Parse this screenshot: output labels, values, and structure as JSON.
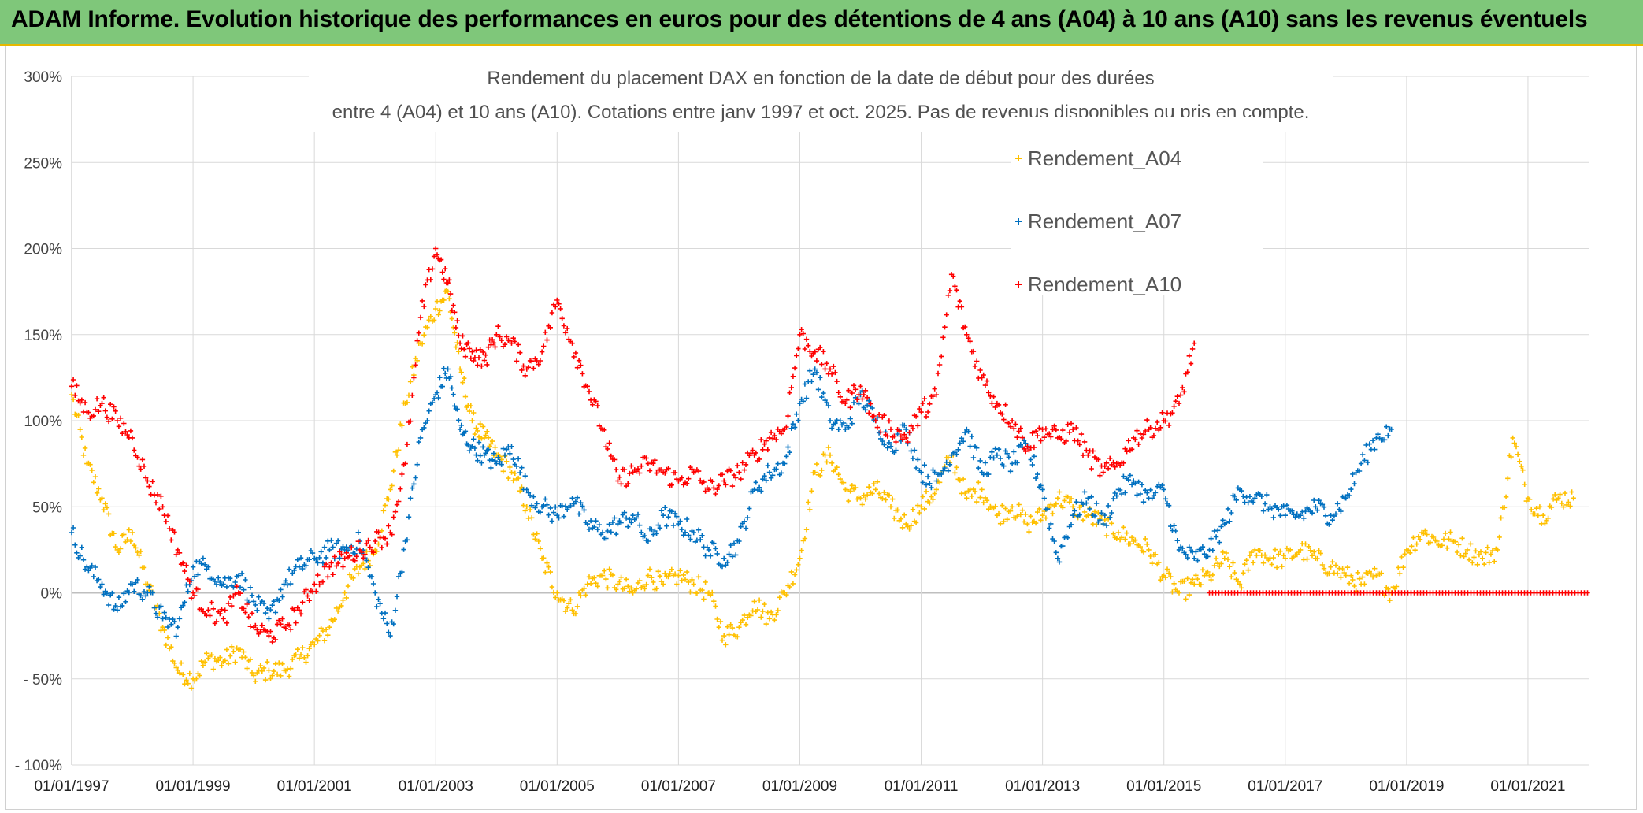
{
  "banner": {
    "title": "ADAM Informe. Evolution historique des performances en euros pour des détentions de 4 ans (A04) à 10 ans (A10) sans les revenus éventuels"
  },
  "colors": {
    "banner_bg": "#7fc77a",
    "A04": "#ffc000",
    "A07": "#0070c0",
    "A10": "#ff0000",
    "grid": "#d9d9d9"
  },
  "chart_data": {
    "type": "scatter",
    "title": "Rendement du placement DAX en fonction de la date de début pour des durées",
    "subtitle": "entre 4 (A04) et 10 ans (A10). Cotations entre janv 1997 et oct. 2025. Pas de revenus disponibles ou pris en compte.",
    "xlabel": "",
    "ylabel": "",
    "xlim": [
      1997.0,
      2022.0
    ],
    "ylim": [
      -100,
      300
    ],
    "y_ticks": [
      -100,
      -50,
      0,
      50,
      100,
      150,
      200,
      250,
      300
    ],
    "y_tick_labels": [
      "- 100%",
      "- 50%",
      "0%",
      "50%",
      "100%",
      "150%",
      "200%",
      "250%",
      "300%"
    ],
    "x_ticks": [
      1997,
      1999,
      2001,
      2003,
      2005,
      2007,
      2009,
      2011,
      2013,
      2015,
      2017,
      2019,
      2021
    ],
    "x_tick_labels": [
      "01/01/1997",
      "01/01/1999",
      "01/01/2001",
      "01/01/2003",
      "01/01/2005",
      "01/01/2007",
      "01/01/2009",
      "01/01/2011",
      "01/01/2013",
      "01/01/2015",
      "01/01/2017",
      "01/01/2019",
      "01/01/2021"
    ],
    "legend": [
      "Rendement_A04",
      "Rendement_A07",
      "Rendement_A10"
    ],
    "legend_position": "top-right",
    "series": [
      {
        "name": "Rendement_A04",
        "x": [
          1997.0,
          1997.25,
          1997.5,
          1997.75,
          1998.0,
          1998.25,
          1998.5,
          1998.75,
          1999.0,
          1999.25,
          1999.5,
          1999.75,
          2000.0,
          2000.25,
          2000.5,
          2000.75,
          2001.0,
          2001.25,
          2001.5,
          2001.75,
          2002.0,
          2002.25,
          2002.5,
          2002.75,
          2003.0,
          2003.2,
          2003.4,
          2003.6,
          2003.8,
          2004.0,
          2004.25,
          2004.5,
          2004.75,
          2005.0,
          2005.25,
          2005.5,
          2005.75,
          2006.0,
          2006.25,
          2006.5,
          2006.75,
          2007.0,
          2007.25,
          2007.5,
          2007.75,
          2008.0,
          2008.25,
          2008.5,
          2008.75,
          2009.0,
          2009.25,
          2009.5,
          2009.75,
          2010.0,
          2010.25,
          2010.5,
          2010.75,
          2011.0,
          2011.25,
          2011.5,
          2011.75,
          2012.0,
          2012.25,
          2012.5,
          2012.75,
          2013.0,
          2013.25,
          2013.5,
          2013.75,
          2014.0,
          2014.25,
          2014.5,
          2014.75,
          2015.0,
          2015.25,
          2015.5,
          2015.75,
          2016.0,
          2016.25,
          2016.5,
          2016.75,
          2017.0,
          2017.25,
          2017.5,
          2017.75,
          2018.0,
          2018.25,
          2018.5,
          2018.75,
          2019.0,
          2019.25,
          2019.5,
          2019.75,
          2020.0,
          2020.25,
          2020.5,
          2020.75,
          2021.0,
          2021.25,
          2021.5,
          2021.75
        ],
        "values": [
          115,
          75,
          55,
          25,
          35,
          5,
          -20,
          -45,
          -50,
          -38,
          -40,
          -33,
          -48,
          -45,
          -45,
          -38,
          -30,
          -20,
          0,
          15,
          25,
          60,
          110,
          145,
          165,
          175,
          130,
          100,
          90,
          80,
          70,
          50,
          20,
          0,
          -10,
          5,
          10,
          5,
          0,
          10,
          5,
          10,
          5,
          0,
          -25,
          -20,
          -5,
          -15,
          0,
          20,
          70,
          80,
          60,
          55,
          60,
          50,
          40,
          50,
          60,
          80,
          55,
          60,
          45,
          50,
          40,
          45,
          55,
          50,
          45,
          40,
          35,
          30,
          25,
          10,
          0,
          5,
          10,
          20,
          5,
          25,
          20,
          20,
          25,
          20,
          15,
          10,
          5,
          10,
          0,
          25,
          35,
          30,
          30,
          25,
          20,
          25,
          90,
          55,
          45,
          55,
          55
        ]
      },
      {
        "name": "Rendement_A07",
        "x": [
          1997.0,
          1997.25,
          1997.5,
          1997.75,
          1998.0,
          1998.25,
          1998.5,
          1998.75,
          1999.0,
          1999.25,
          1999.5,
          1999.75,
          2000.0,
          2000.25,
          2000.5,
          2000.75,
          2001.0,
          2001.25,
          2001.5,
          2001.75,
          2002.0,
          2002.25,
          2002.5,
          2002.75,
          2003.0,
          2003.2,
          2003.4,
          2003.6,
          2003.8,
          2004.0,
          2004.25,
          2004.5,
          2004.75,
          2005.0,
          2005.25,
          2005.5,
          2005.75,
          2006.0,
          2006.25,
          2006.5,
          2006.75,
          2007.0,
          2007.25,
          2007.5,
          2007.75,
          2008.0,
          2008.25,
          2008.5,
          2008.75,
          2009.0,
          2009.25,
          2009.5,
          2009.75,
          2010.0,
          2010.25,
          2010.5,
          2010.75,
          2011.0,
          2011.25,
          2011.5,
          2011.75,
          2012.0,
          2012.25,
          2012.5,
          2012.75,
          2013.0,
          2013.25,
          2013.5,
          2013.75,
          2014.0,
          2014.25,
          2014.5,
          2014.75,
          2015.0,
          2015.25,
          2015.5,
          2015.75,
          2016.0,
          2016.25,
          2016.5,
          2016.75,
          2017.0,
          2017.25,
          2017.5,
          2017.75,
          2018.0,
          2018.25,
          2018.5,
          2018.75
        ],
        "values": [
          35,
          15,
          5,
          -10,
          5,
          0,
          -15,
          -20,
          15,
          15,
          5,
          10,
          -5,
          -15,
          5,
          15,
          20,
          25,
          25,
          30,
          0,
          -25,
          30,
          90,
          115,
          130,
          95,
          85,
          80,
          75,
          85,
          60,
          50,
          45,
          55,
          40,
          35,
          40,
          45,
          30,
          45,
          40,
          35,
          25,
          20,
          30,
          60,
          70,
          75,
          110,
          130,
          100,
          95,
          115,
          100,
          85,
          95,
          70,
          65,
          80,
          95,
          70,
          80,
          75,
          85,
          60,
          20,
          45,
          55,
          40,
          60,
          65,
          55,
          60,
          25,
          20,
          25,
          40,
          60,
          55,
          50,
          45,
          45,
          50,
          45,
          55,
          75,
          90,
          95
        ]
      },
      {
        "name": "Rendement_A10",
        "x": [
          1997.0,
          1997.25,
          1997.5,
          1997.75,
          1998.0,
          1998.25,
          1998.5,
          1998.75,
          1999.0,
          1999.25,
          1999.5,
          1999.75,
          2000.0,
          2000.25,
          2000.5,
          2000.75,
          2001.0,
          2001.25,
          2001.5,
          2001.75,
          2002.0,
          2002.25,
          2002.5,
          2002.75,
          2003.0,
          2003.2,
          2003.4,
          2003.6,
          2003.8,
          2004.0,
          2004.25,
          2004.5,
          2004.75,
          2005.0,
          2005.25,
          2005.5,
          2005.75,
          2006.0,
          2006.25,
          2006.5,
          2006.75,
          2007.0,
          2007.25,
          2007.5,
          2007.75,
          2008.0,
          2008.25,
          2008.5,
          2008.75,
          2009.0,
          2009.25,
          2009.5,
          2009.75,
          2010.0,
          2010.25,
          2010.5,
          2010.75,
          2011.0,
          2011.25,
          2011.5,
          2011.75,
          2012.0,
          2012.25,
          2012.5,
          2012.75,
          2013.0,
          2013.25,
          2013.5,
          2013.75,
          2014.0,
          2014.25,
          2014.5,
          2014.75,
          2015.0,
          2015.25,
          2015.5
        ],
        "values": [
          120,
          105,
          110,
          100,
          90,
          65,
          50,
          25,
          0,
          -10,
          -15,
          0,
          -20,
          -25,
          -20,
          -10,
          5,
          15,
          20,
          25,
          30,
          35,
          75,
          160,
          200,
          180,
          145,
          140,
          135,
          150,
          145,
          130,
          140,
          170,
          145,
          120,
          95,
          65,
          70,
          75,
          70,
          65,
          70,
          60,
          65,
          70,
          80,
          90,
          95,
          150,
          140,
          130,
          110,
          120,
          100,
          95,
          90,
          105,
          115,
          185,
          150,
          125,
          110,
          100,
          85,
          95,
          90,
          95,
          80,
          70,
          75,
          90,
          95,
          100,
          110,
          145
        ]
      },
      {
        "name": "Rendement_A10",
        "x_range": [
          2015.75,
          2022.0
        ],
        "constant_value": 0
      }
    ]
  }
}
